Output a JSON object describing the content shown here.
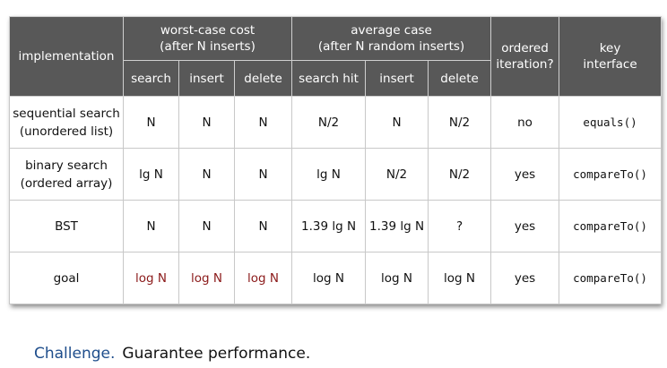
{
  "table": {
    "headers": {
      "implementation": "implementation",
      "worst_case": [
        "worst-case cost",
        "(after N inserts)"
      ],
      "average_case": [
        "average case",
        "(after N random inserts)"
      ],
      "ordered_iteration": [
        "ordered",
        "iteration?"
      ],
      "key_interface": [
        "key",
        "interface"
      ],
      "sub": [
        "search",
        "insert",
        "delete",
        "search hit",
        "insert",
        "delete"
      ]
    },
    "rows": [
      {
        "impl": [
          "sequential search",
          "(unordered list)"
        ],
        "cells": [
          "N",
          "N",
          "N",
          "N/2",
          "N",
          "N/2"
        ],
        "ordered": "no",
        "interface": "equals()"
      },
      {
        "impl": [
          "binary search",
          "(ordered array)"
        ],
        "cells": [
          "lg N",
          "N",
          "N",
          "lg N",
          "N/2",
          "N/2"
        ],
        "ordered": "yes",
        "interface": "compareTo()"
      },
      {
        "impl": [
          "BST"
        ],
        "cells": [
          "N",
          "N",
          "N",
          "1.39 lg N",
          "1.39 lg N",
          "?"
        ],
        "ordered": "yes",
        "interface": "compareTo()"
      },
      {
        "impl": [
          "goal"
        ],
        "cells": [
          "log N",
          "log N",
          "log N",
          "log N",
          "log N",
          "log N"
        ],
        "ordered": "yes",
        "interface": "compareTo()"
      }
    ]
  },
  "challenge": {
    "label": "Challenge.",
    "text": "Guarantee performance."
  },
  "colors": {
    "header_bg": "#585858",
    "highlight_red": "#8b1a1a",
    "challenge_blue": "#1f4e8c"
  }
}
